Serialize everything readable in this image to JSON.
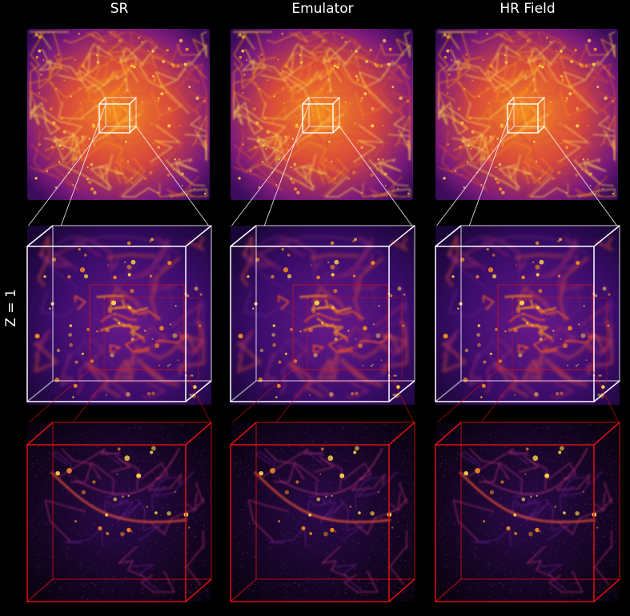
{
  "figure": {
    "columns": [
      {
        "title": "SR"
      },
      {
        "title": "Emulator"
      },
      {
        "title": "HR Field"
      }
    ],
    "row_label": "Z = 1",
    "colormap": [
      "#0a0416",
      "#2a0a4d",
      "#5a1a7a",
      "#9a2a6a",
      "#d94a3a",
      "#f58a20",
      "#fdd34a"
    ],
    "zoom_box_colors": {
      "first_zoom": "#ffffff",
      "second_zoom": "#e01010"
    }
  }
}
